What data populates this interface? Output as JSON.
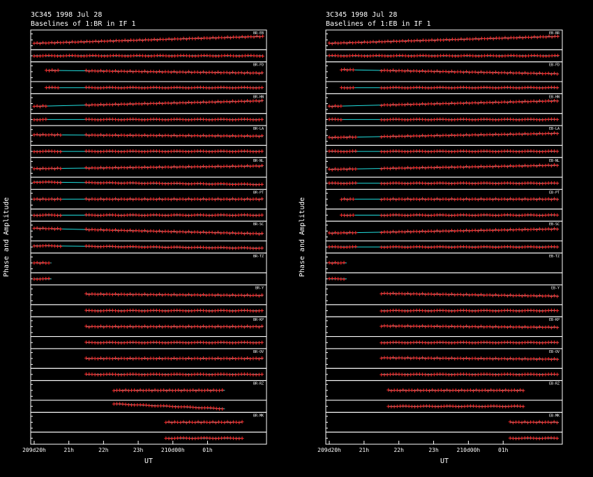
{
  "chart_data": [
    {
      "type": "line",
      "title": "3C345  1998 Jul 28",
      "subtitle": "Baselines of 1:BR in IF 1",
      "ylabel": "Phase and Amplitude",
      "xlabel": "UT",
      "xticks": [
        "209d20h",
        "21h",
        "22h",
        "23h",
        "210d00h",
        "01h"
      ],
      "x_start_hours": 19.9,
      "x_end_hours": 26.7,
      "baselines": [
        {
          "name": "BR-EB",
          "data_start": [
            20.0
          ],
          "data_end": [
            26.6
          ],
          "amp_trend": -0.5,
          "phase_trend": 0.0
        },
        {
          "name": "BR-FD",
          "data_start": [
            20.35,
            21.5
          ],
          "data_end": [
            20.7,
            26.6
          ],
          "amp_trend": 0.2,
          "phase_trend": 0.0
        },
        {
          "name": "BR-HN",
          "data_start": [
            20.0,
            21.5
          ],
          "data_end": [
            20.4,
            26.6
          ],
          "amp_trend": -0.4,
          "phase_trend": 0.0
        },
        {
          "name": "BR-LA",
          "data_start": [
            20.0,
            21.5
          ],
          "data_end": [
            20.8,
            26.6
          ],
          "amp_trend": 0.1,
          "phase_trend": 0.0
        },
        {
          "name": "BR-NL",
          "data_start": [
            20.0,
            21.5
          ],
          "data_end": [
            20.8,
            26.6
          ],
          "amp_trend": -0.2,
          "phase_trend": 0.1
        },
        {
          "name": "BR-PT",
          "data_start": [
            20.0,
            21.5
          ],
          "data_end": [
            20.8,
            26.6
          ],
          "amp_trend": 0.0,
          "phase_trend": 0.0
        },
        {
          "name": "BR-SC",
          "data_start": [
            20.0,
            21.5
          ],
          "data_end": [
            20.8,
            26.6
          ],
          "amp_trend": 0.4,
          "phase_trend": 0.1
        },
        {
          "name": "BR-TZ",
          "data_start": [
            20.0
          ],
          "data_end": [
            20.5
          ],
          "amp_trend": 0.0,
          "phase_trend": 0.0
        },
        {
          "name": "BR-Y",
          "data_start": [
            21.5
          ],
          "data_end": [
            26.6
          ],
          "amp_trend": 0.1,
          "phase_trend": 0.0
        },
        {
          "name": "BR-KP",
          "data_start": [
            21.5
          ],
          "data_end": [
            26.6
          ],
          "amp_trend": 0.0,
          "phase_trend": 0.0
        },
        {
          "name": "BR-OV",
          "data_start": [
            21.5
          ],
          "data_end": [
            26.6
          ],
          "amp_trend": 0.0,
          "phase_trend": 0.0
        },
        {
          "name": "BR-RZ",
          "data_start": [
            22.3
          ],
          "data_end": [
            25.5
          ],
          "amp_trend": 0.0,
          "phase_trend": 0.2
        },
        {
          "name": "BR-MK",
          "data_start": [
            23.8
          ],
          "data_end": [
            26.0
          ],
          "amp_trend": 0.0,
          "phase_trend": 0.0
        }
      ]
    },
    {
      "type": "line",
      "title": "3C345  1998 Jul 28",
      "subtitle": "Baselines of 1:EB in IF 1",
      "ylabel": "Phase and Amplitude",
      "xlabel": "UT",
      "xticks": [
        "209d20h",
        "21h",
        "22h",
        "23h",
        "210d00h",
        "01h"
      ],
      "x_start_hours": 19.9,
      "x_end_hours": 26.7,
      "baselines": [
        {
          "name": "EB-BR",
          "data_start": [
            20.0
          ],
          "data_end": [
            26.6
          ],
          "amp_trend": -0.5,
          "phase_trend": 0.0
        },
        {
          "name": "EB-FD",
          "data_start": [
            20.35,
            21.5
          ],
          "data_end": [
            20.7,
            26.6
          ],
          "amp_trend": 0.3,
          "phase_trend": 0.0
        },
        {
          "name": "EB-HN",
          "data_start": [
            20.0,
            21.5
          ],
          "data_end": [
            20.4,
            26.6
          ],
          "amp_trend": -0.4,
          "phase_trend": 0.0
        },
        {
          "name": "EB-LA",
          "data_start": [
            20.0,
            21.5
          ],
          "data_end": [
            20.8,
            26.6
          ],
          "amp_trend": -0.3,
          "phase_trend": 0.0
        },
        {
          "name": "EB-NL",
          "data_start": [
            20.0,
            21.5
          ],
          "data_end": [
            20.8,
            26.6
          ],
          "amp_trend": -0.3,
          "phase_trend": 0.0
        },
        {
          "name": "EB-PT",
          "data_start": [
            20.35,
            21.5
          ],
          "data_end": [
            20.7,
            26.6
          ],
          "amp_trend": 0.0,
          "phase_trend": 0.0
        },
        {
          "name": "EB-SC",
          "data_start": [
            20.0,
            21.5
          ],
          "data_end": [
            20.8,
            26.6
          ],
          "amp_trend": -0.3,
          "phase_trend": 0.0
        },
        {
          "name": "EB-TZ",
          "data_start": [
            20.0
          ],
          "data_end": [
            20.5
          ],
          "amp_trend": 0.0,
          "phase_trend": 0.0
        },
        {
          "name": "EB-Y",
          "data_start": [
            21.5
          ],
          "data_end": [
            26.6
          ],
          "amp_trend": 0.2,
          "phase_trend": 0.0
        },
        {
          "name": "EB-KP",
          "data_start": [
            21.5
          ],
          "data_end": [
            26.6
          ],
          "amp_trend": 0.1,
          "phase_trend": 0.0
        },
        {
          "name": "EB-OV",
          "data_start": [
            21.5
          ],
          "data_end": [
            26.6
          ],
          "amp_trend": 0.1,
          "phase_trend": 0.0
        },
        {
          "name": "EB-RZ",
          "data_start": [
            21.7
          ],
          "data_end": [
            25.6
          ],
          "amp_trend": 0.0,
          "phase_trend": 0.0
        },
        {
          "name": "EB-MK",
          "data_start": [
            25.2
          ],
          "data_end": [
            26.6
          ],
          "amp_trend": 0.0,
          "phase_trend": 0.0
        }
      ]
    }
  ]
}
